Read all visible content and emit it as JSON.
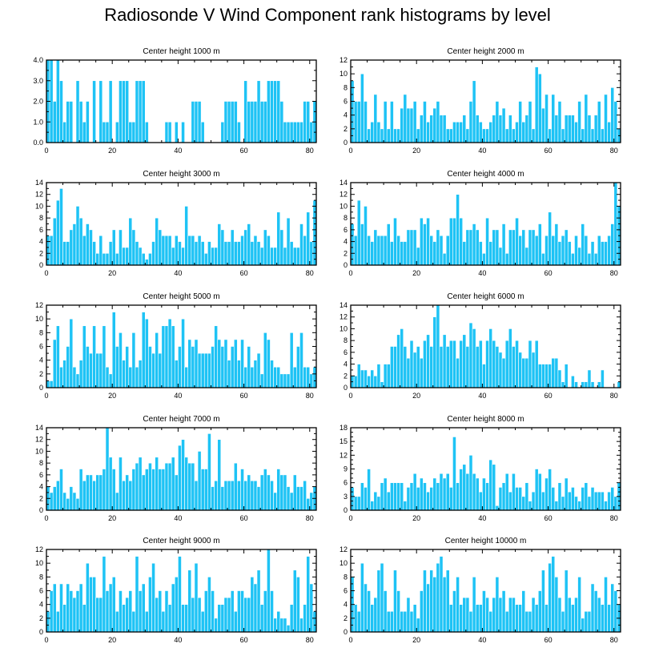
{
  "figure": {
    "title": "Radiosonde V Wind Component rank histograms by level",
    "bar_color": "#1ec3f5",
    "bar_outline": "#ffffff",
    "axis_color": "#000000"
  },
  "chart_data": [
    {
      "type": "bar",
      "title": "Center height 1000 m",
      "xlabel": "",
      "ylabel": "",
      "x_start": 0,
      "xlim": [
        0,
        82
      ],
      "xticks": [
        0,
        20,
        40,
        60,
        80
      ],
      "ylim": [
        0,
        4
      ],
      "yticks": [
        0.0,
        1.0,
        2.0,
        3.0,
        4.0
      ],
      "ytick_labels": [
        "0.0",
        "1.0",
        "2.0",
        "3.0",
        "4.0"
      ],
      "values": [
        4,
        4,
        2,
        4,
        3,
        1,
        2,
        2,
        0,
        3,
        2,
        1,
        2,
        0,
        3,
        0,
        3,
        1,
        1,
        3,
        0,
        1,
        3,
        3,
        3,
        1,
        1,
        3,
        3,
        3,
        1,
        0,
        0,
        0,
        0,
        0,
        1,
        1,
        0,
        1,
        0,
        1,
        0,
        0,
        2,
        2,
        2,
        1,
        0,
        0,
        0,
        0,
        0,
        1,
        2,
        2,
        2,
        2,
        1,
        0,
        3,
        2,
        2,
        2,
        3,
        2,
        2,
        3,
        3,
        3,
        3,
        2,
        1,
        1,
        1,
        1,
        1,
        1,
        2,
        2,
        1,
        2
      ]
    },
    {
      "type": "bar",
      "title": "Center height 2000 m",
      "xlabel": "",
      "ylabel": "",
      "x_start": 0,
      "xlim": [
        0,
        82
      ],
      "xticks": [
        0,
        20,
        40,
        60,
        80
      ],
      "ylim": [
        0,
        12
      ],
      "yticks": [
        0,
        2,
        4,
        6,
        8,
        10,
        12
      ],
      "ytick_labels": [
        "0",
        "2",
        "4",
        "6",
        "8",
        "10",
        "12"
      ],
      "values": [
        9,
        6,
        6,
        10,
        6,
        2,
        3,
        7,
        3,
        2,
        6,
        2,
        6,
        2,
        2,
        5,
        7,
        5,
        5,
        6,
        2,
        4,
        6,
        3,
        4,
        5,
        6,
        4,
        4,
        2,
        2,
        3,
        3,
        3,
        4,
        2,
        6,
        9,
        4,
        3,
        2,
        2,
        3,
        4,
        6,
        4,
        5,
        2,
        4,
        2,
        3,
        6,
        3,
        4,
        6,
        2,
        11,
        10,
        5,
        7,
        2,
        7,
        4,
        6,
        2,
        4,
        4,
        4,
        3,
        6,
        2,
        7,
        4,
        2,
        4,
        6,
        2,
        7,
        3,
        8,
        6,
        2
      ]
    },
    {
      "type": "bar",
      "title": "Center height 3000 m",
      "xlabel": "",
      "ylabel": "",
      "x_start": 0,
      "xlim": [
        0,
        82
      ],
      "xticks": [
        0,
        20,
        40,
        60,
        80
      ],
      "ylim": [
        0,
        14
      ],
      "yticks": [
        0,
        2,
        4,
        6,
        8,
        10,
        12,
        14
      ],
      "ytick_labels": [
        "0",
        "2",
        "4",
        "6",
        "8",
        "10",
        "12",
        "14"
      ],
      "values": [
        5,
        5,
        8,
        11,
        13,
        4,
        4,
        6,
        7,
        10,
        8,
        5,
        7,
        6,
        4,
        2,
        5,
        2,
        2,
        4,
        6,
        2,
        6,
        3,
        3,
        8,
        6,
        4,
        3,
        2,
        1,
        2,
        4,
        8,
        6,
        5,
        5,
        5,
        3,
        5,
        4,
        3,
        10,
        5,
        5,
        4,
        5,
        4,
        2,
        4,
        3,
        3,
        7,
        6,
        4,
        4,
        6,
        4,
        4,
        5,
        6,
        7,
        4,
        5,
        4,
        3,
        6,
        5,
        3,
        3,
        9,
        6,
        3,
        8,
        4,
        3,
        3,
        7,
        5,
        9,
        4,
        11
      ]
    },
    {
      "type": "bar",
      "title": "Center height 4000 m",
      "xlabel": "",
      "ylabel": "",
      "x_start": 0,
      "xlim": [
        0,
        82
      ],
      "xticks": [
        0,
        20,
        40,
        60,
        80
      ],
      "ylim": [
        0,
        14
      ],
      "yticks": [
        0,
        2,
        4,
        6,
        8,
        10,
        12,
        14
      ],
      "ytick_labels": [
        "0",
        "2",
        "4",
        "6",
        "8",
        "10",
        "12",
        "14"
      ],
      "values": [
        7,
        5,
        11,
        7,
        10,
        5,
        4,
        6,
        5,
        5,
        5,
        7,
        4,
        8,
        5,
        4,
        4,
        6,
        6,
        6,
        3,
        8,
        7,
        8,
        5,
        4,
        6,
        5,
        2,
        5,
        8,
        8,
        12,
        8,
        4,
        6,
        6,
        7,
        6,
        4,
        2,
        8,
        4,
        6,
        6,
        3,
        7,
        2,
        6,
        6,
        8,
        5,
        6,
        3,
        6,
        6,
        5,
        7,
        2,
        5,
        9,
        5,
        7,
        4,
        5,
        6,
        4,
        2,
        5,
        3,
        7,
        5,
        2,
        4,
        2,
        5,
        4,
        4,
        5,
        7,
        14,
        10
      ]
    },
    {
      "type": "bar",
      "title": "Center height 5000 m",
      "xlabel": "",
      "ylabel": "",
      "x_start": 0,
      "xlim": [
        0,
        82
      ],
      "xticks": [
        0,
        20,
        40,
        60,
        80
      ],
      "ylim": [
        0,
        12
      ],
      "yticks": [
        0,
        2,
        4,
        6,
        8,
        10,
        12
      ],
      "ytick_labels": [
        "0",
        "2",
        "4",
        "6",
        "8",
        "10",
        "12"
      ],
      "values": [
        1,
        1,
        7,
        9,
        3,
        4,
        6,
        10,
        3,
        2,
        4,
        9,
        6,
        5,
        9,
        5,
        5,
        9,
        3,
        2,
        11,
        6,
        8,
        4,
        6,
        3,
        8,
        3,
        4,
        11,
        10,
        6,
        5,
        8,
        5,
        9,
        9,
        10,
        9,
        4,
        6,
        10,
        3,
        7,
        6,
        7,
        5,
        5,
        5,
        5,
        6,
        9,
        7,
        6,
        7,
        4,
        6,
        7,
        4,
        7,
        3,
        6,
        3,
        4,
        5,
        2,
        8,
        7,
        4,
        3,
        3,
        2,
        2,
        2,
        8,
        3,
        6,
        8,
        3,
        3,
        2,
        3
      ]
    },
    {
      "type": "bar",
      "title": "Center height 6000 m",
      "xlabel": "",
      "ylabel": "",
      "x_start": 0,
      "xlim": [
        0,
        82
      ],
      "xticks": [
        0,
        20,
        40,
        60,
        80
      ],
      "ylim": [
        0,
        14
      ],
      "yticks": [
        0,
        2,
        4,
        6,
        8,
        10,
        12,
        14
      ],
      "ytick_labels": [
        "0",
        "2",
        "4",
        "6",
        "8",
        "10",
        "12",
        "14"
      ],
      "values": [
        2,
        2,
        4,
        3,
        3,
        2,
        3,
        2,
        4,
        1,
        4,
        4,
        7,
        7,
        9,
        10,
        7,
        5,
        8,
        6,
        7,
        5,
        8,
        9,
        7,
        12,
        14,
        7,
        9,
        7,
        8,
        8,
        5,
        8,
        9,
        7,
        11,
        10,
        7,
        8,
        4,
        8,
        10,
        8,
        7,
        6,
        5,
        8,
        10,
        7,
        8,
        6,
        5,
        5,
        8,
        6,
        8,
        4,
        4,
        4,
        4,
        5,
        5,
        3,
        1,
        4,
        0,
        2,
        1,
        0,
        1,
        1,
        3,
        1,
        0,
        1,
        3,
        0,
        0,
        0,
        0,
        1
      ]
    },
    {
      "type": "bar",
      "title": "Center height 7000 m",
      "xlabel": "",
      "ylabel": "",
      "x_start": 0,
      "xlim": [
        0,
        82
      ],
      "xticks": [
        0,
        20,
        40,
        60,
        80
      ],
      "ylim": [
        0,
        14
      ],
      "yticks": [
        0,
        2,
        4,
        6,
        8,
        10,
        12,
        14
      ],
      "ytick_labels": [
        "0",
        "2",
        "4",
        "6",
        "8",
        "10",
        "12",
        "14"
      ],
      "values": [
        4,
        3,
        4,
        5,
        7,
        3,
        2,
        4,
        3,
        2,
        7,
        5,
        6,
        6,
        5,
        6,
        6,
        7,
        14,
        9,
        7,
        3,
        9,
        5,
        6,
        5,
        7,
        8,
        9,
        6,
        7,
        8,
        7,
        9,
        7,
        7,
        8,
        8,
        9,
        6,
        11,
        12,
        9,
        8,
        8,
        5,
        10,
        7,
        7,
        13,
        4,
        5,
        12,
        4,
        5,
        5,
        5,
        8,
        5,
        7,
        5,
        6,
        5,
        5,
        4,
        6,
        7,
        6,
        5,
        3,
        7,
        6,
        6,
        4,
        3,
        6,
        4,
        4,
        5,
        2,
        3,
        4
      ]
    },
    {
      "type": "bar",
      "title": "Center height 8000 m",
      "xlabel": "",
      "ylabel": "",
      "x_start": 0,
      "xlim": [
        0,
        82
      ],
      "xticks": [
        0,
        20,
        40,
        60,
        80
      ],
      "ylim": [
        0,
        18
      ],
      "yticks": [
        0,
        3,
        6,
        9,
        12,
        15,
        18
      ],
      "ytick_labels": [
        "0",
        "3",
        "6",
        "9",
        "12",
        "15",
        "18"
      ],
      "values": [
        5,
        3,
        3,
        6,
        5,
        9,
        2,
        4,
        3,
        6,
        7,
        4,
        6,
        6,
        6,
        6,
        2,
        5,
        6,
        8,
        5,
        7,
        6,
        4,
        5,
        7,
        6,
        8,
        7,
        8,
        5,
        16,
        6,
        9,
        10,
        8,
        12,
        8,
        7,
        4,
        7,
        6,
        11,
        10,
        1,
        5,
        6,
        8,
        4,
        8,
        5,
        5,
        3,
        6,
        2,
        4,
        9,
        8,
        4,
        7,
        9,
        5,
        2,
        6,
        3,
        7,
        4,
        5,
        3,
        2,
        5,
        6,
        3,
        5,
        4,
        4,
        4,
        2,
        4,
        5,
        3,
        6
      ]
    },
    {
      "type": "bar",
      "title": "Center height 9000 m",
      "xlabel": "",
      "ylabel": "",
      "x_start": 0,
      "xlim": [
        0,
        82
      ],
      "xticks": [
        0,
        20,
        40,
        60,
        80
      ],
      "ylim": [
        0,
        12
      ],
      "yticks": [
        0,
        2,
        4,
        6,
        8,
        10,
        12
      ],
      "ytick_labels": [
        "0",
        "2",
        "4",
        "6",
        "8",
        "10",
        "12"
      ],
      "values": [
        3,
        6,
        7,
        3,
        7,
        4,
        7,
        6,
        5,
        6,
        7,
        4,
        10,
        8,
        8,
        5,
        5,
        11,
        6,
        7,
        8,
        3,
        6,
        4,
        5,
        6,
        3,
        11,
        6,
        7,
        3,
        8,
        10,
        5,
        6,
        3,
        6,
        4,
        7,
        8,
        11,
        4,
        4,
        9,
        5,
        10,
        5,
        3,
        6,
        8,
        6,
        2,
        4,
        4,
        5,
        5,
        6,
        3,
        6,
        6,
        5,
        5,
        8,
        7,
        9,
        4,
        6,
        12,
        6,
        2,
        3,
        2,
        2,
        1,
        4,
        9,
        8,
        2,
        4,
        11,
        7,
        3
      ]
    },
    {
      "type": "bar",
      "title": "Center height 10000 m",
      "xlabel": "",
      "ylabel": "",
      "x_start": 0,
      "xlim": [
        0,
        82
      ],
      "xticks": [
        0,
        20,
        40,
        60,
        80
      ],
      "ylim": [
        0,
        12
      ],
      "yticks": [
        0,
        2,
        4,
        6,
        8,
        10,
        12
      ],
      "ytick_labels": [
        "0",
        "2",
        "4",
        "6",
        "8",
        "10",
        "12"
      ],
      "values": [
        8,
        4,
        3,
        10,
        7,
        6,
        4,
        5,
        9,
        10,
        6,
        3,
        3,
        9,
        6,
        3,
        3,
        5,
        3,
        4,
        2,
        6,
        9,
        7,
        9,
        8,
        10,
        11,
        8,
        9,
        4,
        6,
        8,
        4,
        5,
        5,
        3,
        8,
        4,
        4,
        6,
        5,
        3,
        5,
        8,
        5,
        6,
        3,
        5,
        5,
        4,
        4,
        6,
        3,
        3,
        5,
        4,
        6,
        9,
        4,
        10,
        11,
        8,
        5,
        3,
        9,
        5,
        4,
        5,
        8,
        2,
        3,
        3,
        7,
        6,
        5,
        4,
        8,
        4,
        7,
        6,
        4
      ]
    }
  ]
}
